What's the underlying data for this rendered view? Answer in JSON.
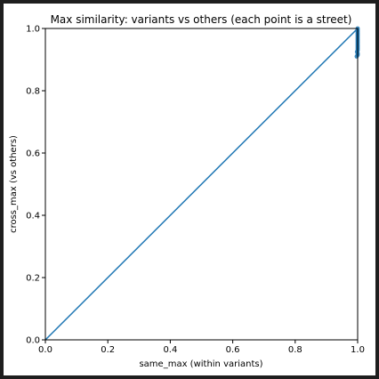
{
  "chart_data": {
    "type": "scatter",
    "title": "Max similarity: variants vs others (each point is a street)",
    "xlabel": "same_max (within variants)",
    "ylabel": "cross_max (vs others)",
    "xlim": [
      0.0,
      1.0
    ],
    "ylim": [
      0.0,
      1.0
    ],
    "xticks": [
      "0.0",
      "0.2",
      "0.4",
      "0.6",
      "0.8",
      "1.0"
    ],
    "yticks": [
      "0.0",
      "0.2",
      "0.4",
      "0.6",
      "0.8",
      "1.0"
    ],
    "xtick_values": [
      0.0,
      0.2,
      0.4,
      0.6,
      0.8,
      1.0
    ],
    "ytick_values": [
      0.0,
      0.2,
      0.4,
      0.6,
      0.8,
      1.0
    ],
    "grid": false,
    "reference_line": {
      "x": [
        0.0,
        1.0
      ],
      "y": [
        0.0,
        1.0
      ],
      "color": "#1f77b4"
    },
    "points": [
      {
        "x": 1.0,
        "y": 1.0
      },
      {
        "x": 1.0,
        "y": 0.995
      },
      {
        "x": 1.0,
        "y": 0.99
      },
      {
        "x": 1.0,
        "y": 0.985
      },
      {
        "x": 1.0,
        "y": 0.98
      },
      {
        "x": 1.0,
        "y": 0.975
      },
      {
        "x": 1.0,
        "y": 0.97
      },
      {
        "x": 1.0,
        "y": 0.965
      },
      {
        "x": 1.0,
        "y": 0.96
      },
      {
        "x": 1.0,
        "y": 0.955
      },
      {
        "x": 1.0,
        "y": 0.95
      },
      {
        "x": 1.0,
        "y": 0.945
      },
      {
        "x": 1.0,
        "y": 0.94
      },
      {
        "x": 1.0,
        "y": 0.935
      },
      {
        "x": 1.0,
        "y": 0.93
      },
      {
        "x": 0.998,
        "y": 0.925
      },
      {
        "x": 1.0,
        "y": 0.92
      },
      {
        "x": 1.0,
        "y": 0.915
      },
      {
        "x": 0.997,
        "y": 0.91
      }
    ],
    "point_color": "#1f77b4"
  }
}
